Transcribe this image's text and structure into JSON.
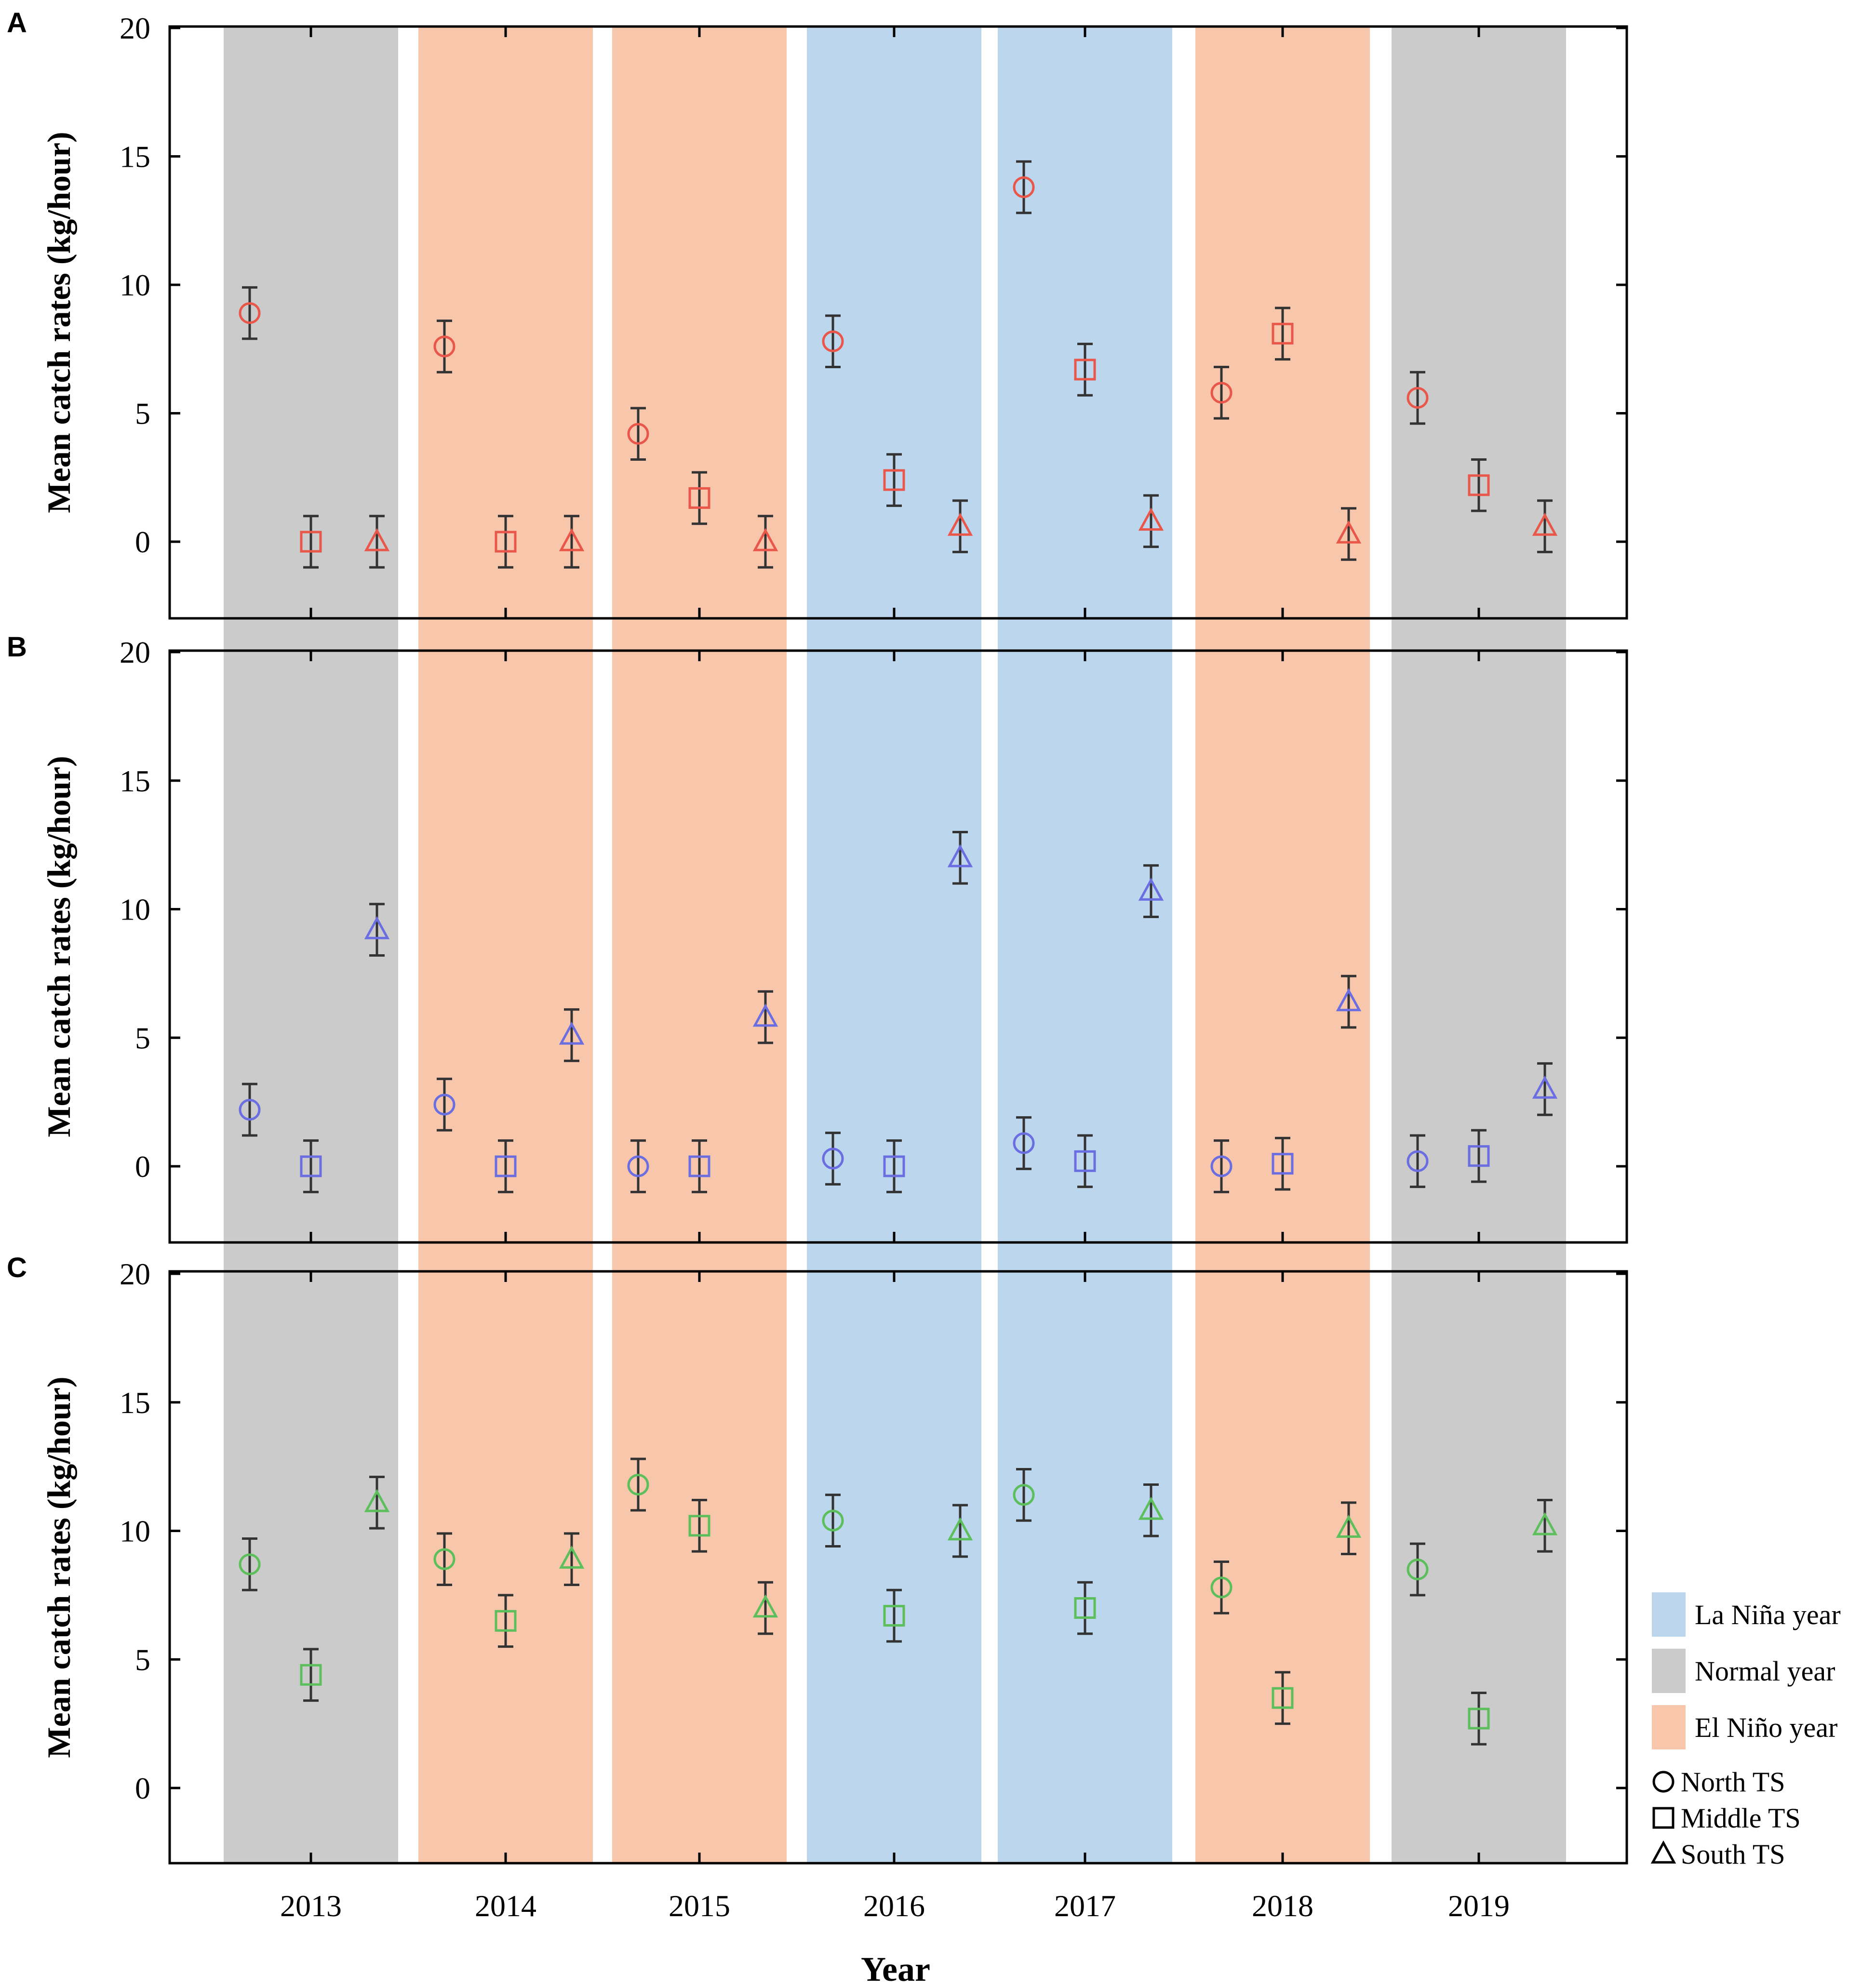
{
  "chart_data": {
    "type": "scatter",
    "xlabel": "Year",
    "ylabel": "Mean catch rates (kg/hour)",
    "ylim": [
      -3,
      20
    ],
    "yticks": [
      0,
      5,
      10,
      15,
      20
    ],
    "years": [
      "2013",
      "2014",
      "2015",
      "2016",
      "2017",
      "2018",
      "2019"
    ],
    "year_types": [
      "Normal year",
      "El Niño year",
      "El Niño year",
      "La Niña year",
      "La Niña year",
      "El Niño year",
      "Normal year"
    ],
    "category_colors": {
      "La Niña year": "#bcd6ee",
      "Normal year": "#cbcbcb",
      "El Niño year": "#f8c7ab"
    },
    "error_bar_color": "#333333",
    "panels": [
      {
        "label": "A",
        "marker_color": "#e8574a",
        "series": [
          {
            "name": "North TS",
            "marker": "circle",
            "values": [
              8.9,
              7.6,
              4.2,
              7.8,
              13.8,
              5.8,
              5.6
            ],
            "errors": [
              1.0,
              1.0,
              1.0,
              1.0,
              1.0,
              1.0,
              1.0
            ]
          },
          {
            "name": "Middle TS",
            "marker": "square",
            "values": [
              0.0,
              0.0,
              1.7,
              2.4,
              6.7,
              8.1,
              2.2
            ],
            "errors": [
              1.0,
              1.0,
              1.0,
              1.0,
              1.0,
              1.0,
              1.0
            ]
          },
          {
            "name": "South TS",
            "marker": "triangle",
            "values": [
              0.0,
              0.0,
              0.0,
              0.6,
              0.8,
              0.3,
              0.6
            ],
            "errors": [
              1.0,
              1.0,
              1.0,
              1.0,
              1.0,
              1.0,
              1.0
            ]
          }
        ]
      },
      {
        "label": "B",
        "marker_color": "#6b6ee0",
        "series": [
          {
            "name": "North TS",
            "marker": "circle",
            "values": [
              2.2,
              2.4,
              0.0,
              0.3,
              0.9,
              0.0,
              0.2
            ],
            "errors": [
              1.0,
              1.0,
              1.0,
              1.0,
              1.0,
              1.0,
              1.0
            ]
          },
          {
            "name": "Middle TS",
            "marker": "square",
            "values": [
              0.0,
              0.0,
              0.0,
              0.0,
              0.2,
              0.1,
              0.4
            ],
            "errors": [
              1.0,
              1.0,
              1.0,
              1.0,
              1.0,
              1.0,
              1.0
            ]
          },
          {
            "name": "South TS",
            "marker": "triangle",
            "values": [
              9.2,
              5.1,
              5.8,
              12.0,
              10.7,
              6.4,
              3.0
            ],
            "errors": [
              1.0,
              1.0,
              1.0,
              1.0,
              1.0,
              1.0,
              1.0
            ]
          }
        ]
      },
      {
        "label": "C",
        "marker_color": "#5cbf5c",
        "series": [
          {
            "name": "North TS",
            "marker": "circle",
            "values": [
              8.7,
              8.9,
              11.8,
              10.4,
              11.4,
              7.8,
              8.5
            ],
            "errors": [
              1.0,
              1.0,
              1.0,
              1.0,
              1.0,
              1.0,
              1.0
            ]
          },
          {
            "name": "Middle TS",
            "marker": "square",
            "values": [
              4.4,
              6.5,
              10.2,
              6.7,
              7.0,
              3.5,
              2.7
            ],
            "errors": [
              1.0,
              1.0,
              1.0,
              1.0,
              1.0,
              1.0,
              1.0
            ]
          },
          {
            "name": "South TS",
            "marker": "triangle",
            "values": [
              11.1,
              8.9,
              7.0,
              10.0,
              10.8,
              10.1,
              10.2
            ],
            "errors": [
              1.0,
              1.0,
              1.0,
              1.0,
              1.0,
              1.0,
              1.0
            ]
          }
        ]
      }
    ],
    "legend": {
      "categories": [
        "La Niña year",
        "Normal year",
        "El Niño year"
      ],
      "markers": [
        {
          "label": "North TS",
          "marker": "circle"
        },
        {
          "label": "Middle TS",
          "marker": "square"
        },
        {
          "label": "South TS",
          "marker": "triangle"
        }
      ]
    }
  }
}
